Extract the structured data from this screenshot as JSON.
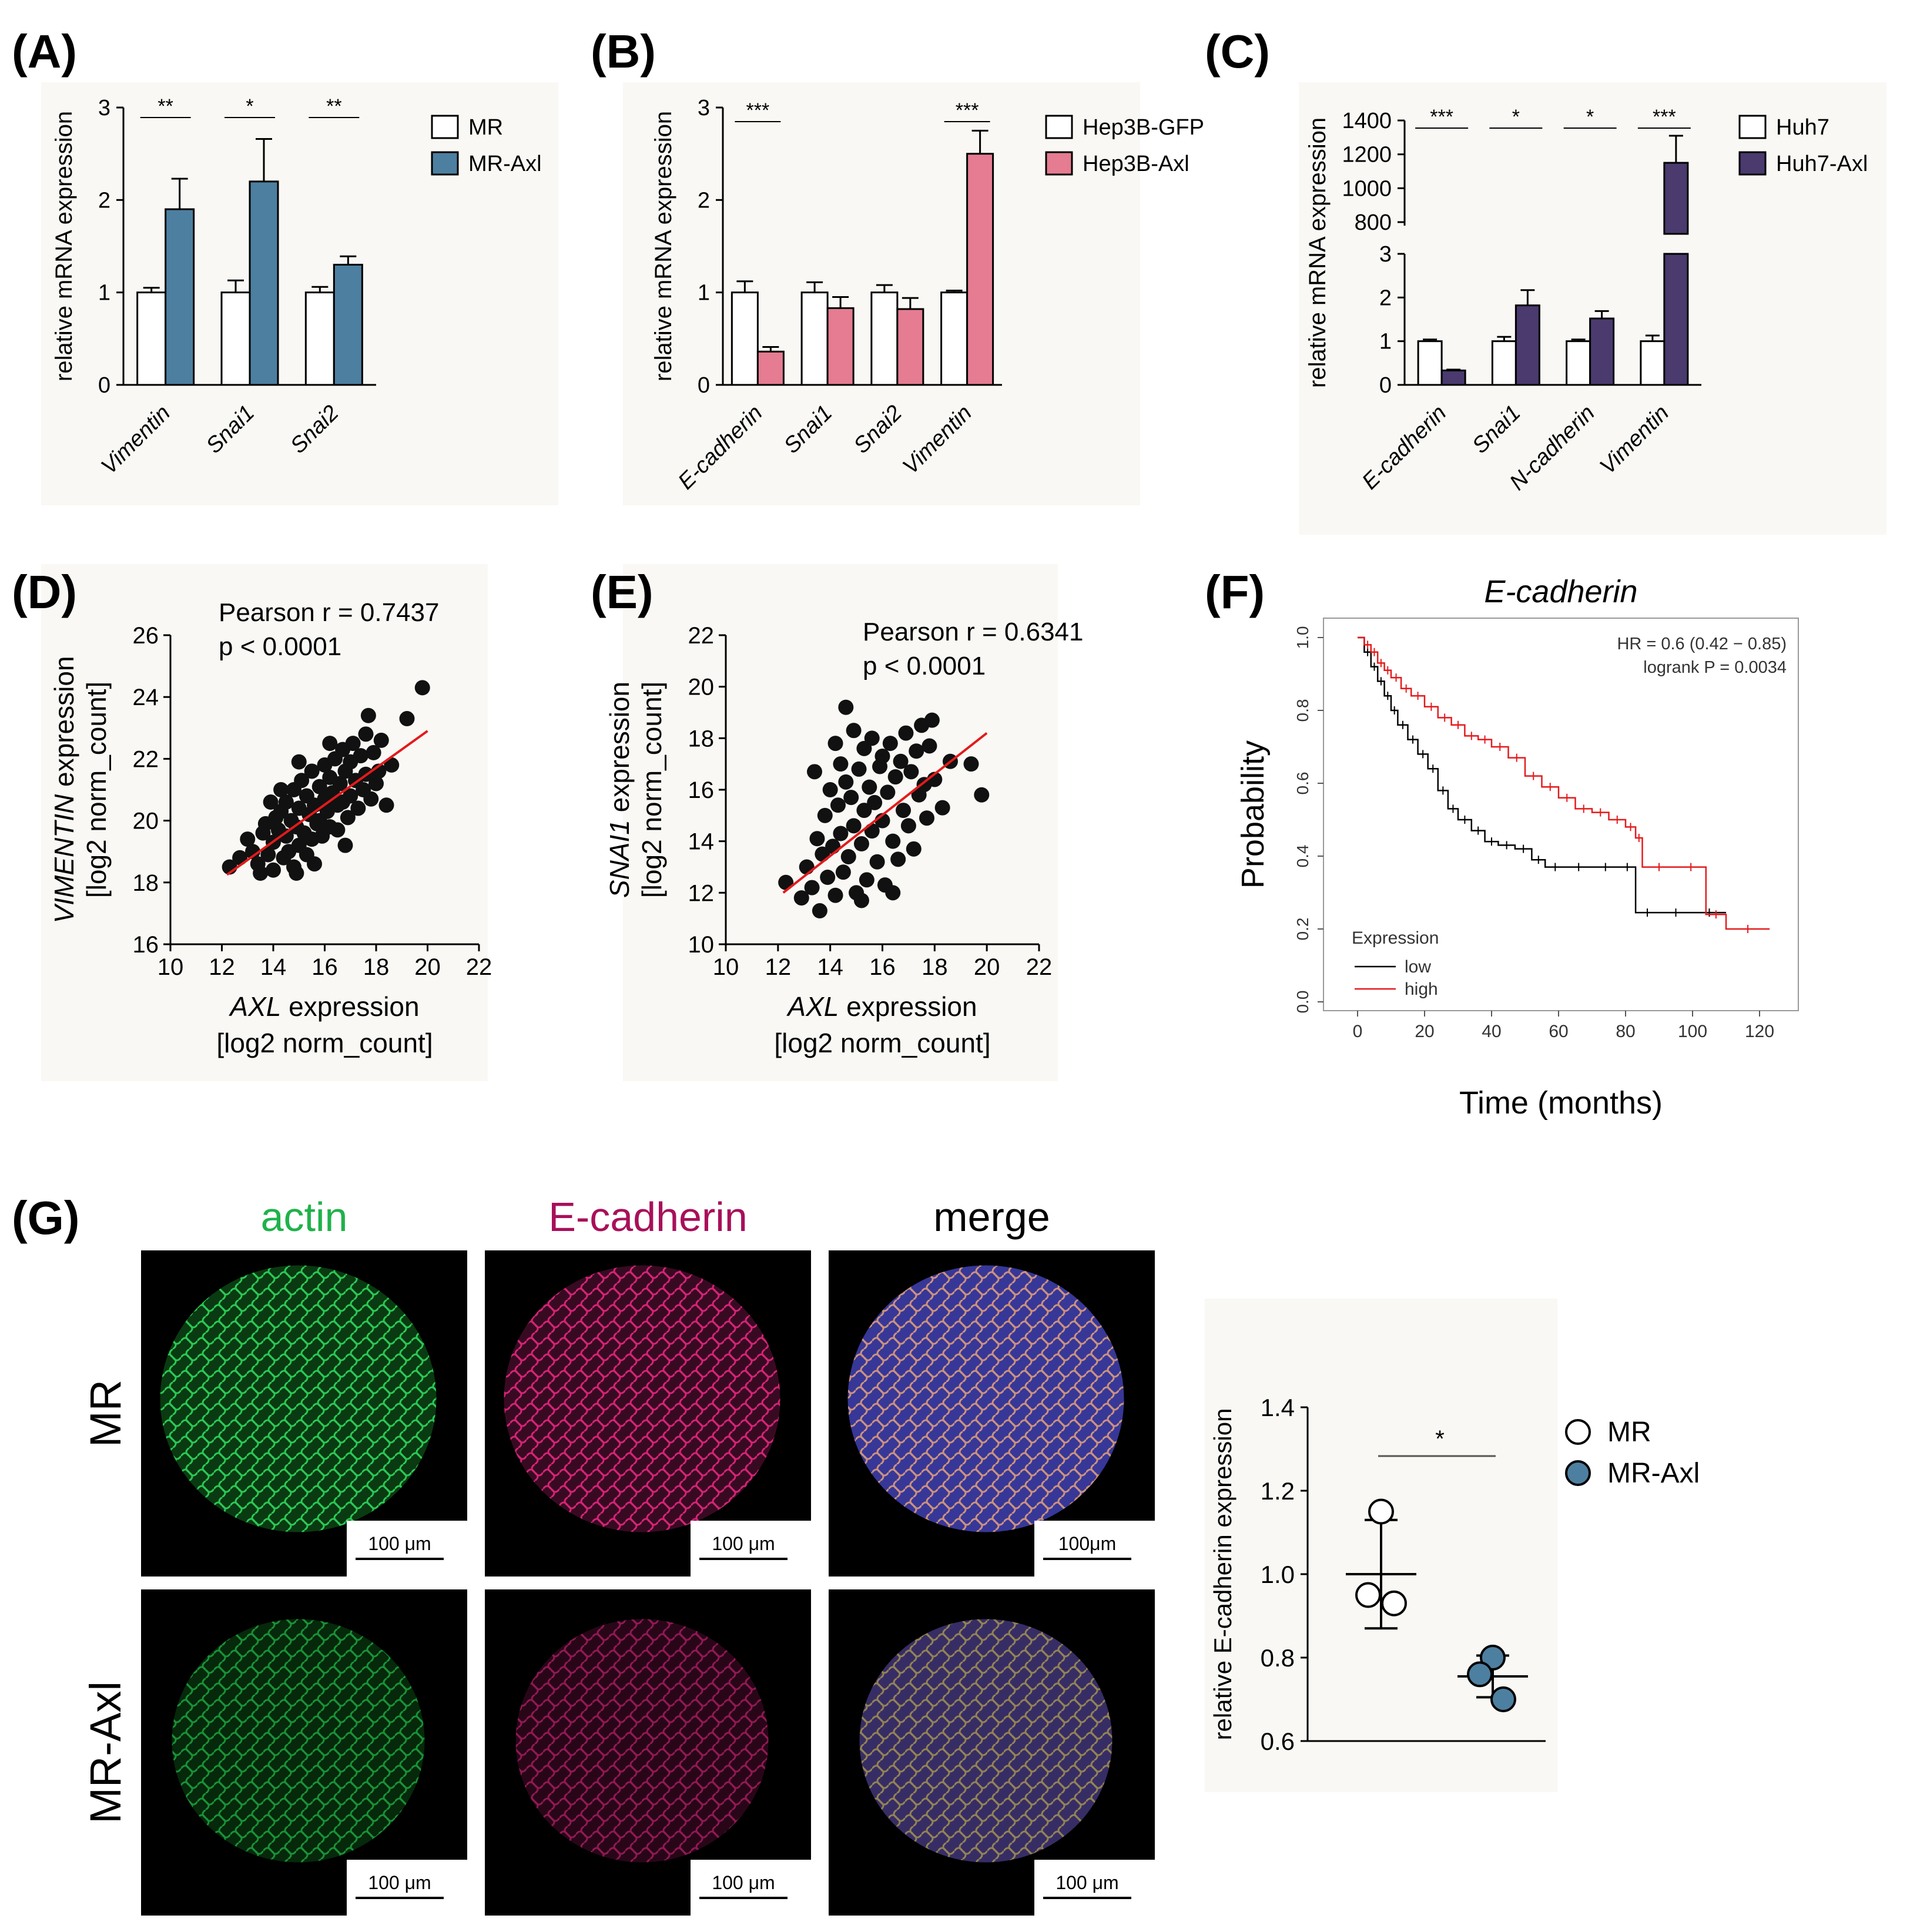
{
  "panels": {
    "A": {
      "letter": "(A)"
    },
    "B": {
      "letter": "(B)"
    },
    "C": {
      "letter": "(C)"
    },
    "D": {
      "letter": "(D)"
    },
    "E": {
      "letter": "(E)"
    },
    "F": {
      "letter": "(F)"
    },
    "G": {
      "letter": "(G)"
    }
  },
  "colors": {
    "mr_axl": "#4d7fa0",
    "hep3b_axl": "#e57c91",
    "huh7_axl": "#4a3a6e",
    "km_low": "#000000",
    "km_high": "#e31a1c",
    "fit_line": "#e31a1c",
    "actin": "#1fb24a",
    "ecad": "#a8105a",
    "merge": "#000000"
  },
  "chart_data": [
    {
      "id": "A",
      "type": "bar",
      "categories": [
        "Vimentin",
        "Snai1",
        "Snai2"
      ],
      "series": [
        {
          "name": "MR",
          "values": [
            1.0,
            1.0,
            1.0
          ],
          "errors": [
            0.05,
            0.13,
            0.06
          ]
        },
        {
          "name": "MR-Axl",
          "values": [
            1.9,
            2.2,
            1.3
          ],
          "errors": [
            0.33,
            0.46,
            0.09
          ]
        }
      ],
      "ylabel": "relative mRNA expression",
      "ylim": [
        0,
        3
      ],
      "yticks": [
        "0",
        "1",
        "2",
        "3"
      ],
      "significance": [
        "**",
        "*",
        "**"
      ]
    },
    {
      "id": "B",
      "type": "bar",
      "categories": [
        "E-cadherin",
        "Snai1",
        "Snai2",
        "Vimentin"
      ],
      "series": [
        {
          "name": "Hep3B-GFP",
          "values": [
            1.0,
            1.0,
            1.0,
            1.0
          ],
          "errors": [
            0.12,
            0.11,
            0.08,
            0.02
          ]
        },
        {
          "name": "Hep3B-Axl",
          "values": [
            0.36,
            0.83,
            0.82,
            2.5
          ],
          "errors": [
            0.05,
            0.12,
            0.12,
            0.25
          ]
        }
      ],
      "ylabel": "relative mRNA expression",
      "ylim": [
        0,
        3
      ],
      "yticks": [
        "0",
        "1",
        "2",
        "3"
      ],
      "significance": [
        "***",
        "",
        "",
        "***"
      ]
    },
    {
      "id": "C",
      "type": "bar",
      "categories": [
        "E-cadherin",
        "Snai1",
        "N-cadherin",
        "Vimentin"
      ],
      "series": [
        {
          "name": "Huh7",
          "values": [
            1.0,
            1.0,
            1.0,
            1.0
          ],
          "errors": [
            0.04,
            0.1,
            0.04,
            0.13
          ]
        },
        {
          "name": "Huh7-Axl",
          "values": [
            0.33,
            1.82,
            1.52,
            1150
          ],
          "errors": [
            0.02,
            0.35,
            0.17,
            160
          ]
        }
      ],
      "ylabel": "relative mRNA expression",
      "ylim": [
        0,
        1400
      ],
      "yticks_lower": [
        "0",
        "1",
        "2",
        "3"
      ],
      "yticks_upper": [
        "800",
        "1000",
        "1200",
        "1400"
      ],
      "significance": [
        "***",
        "*",
        "*",
        "***"
      ]
    },
    {
      "id": "D",
      "type": "scatter",
      "annotation_r": "Pearson r = 0.7437",
      "annotation_p": "p < 0.0001",
      "xlabel_gene": "AXL",
      "xlabel_rest": " expression",
      "xlabel_unit": "[log2 norm_count]",
      "ylabel_gene": "VIMENTIN",
      "ylabel_rest": " expression",
      "ylabel_unit": "[log2 norm_count]",
      "xlim": [
        10,
        22
      ],
      "ylim": [
        16,
        26
      ],
      "xticks": [
        "10",
        "12",
        "14",
        "16",
        "18",
        "20",
        "22"
      ],
      "yticks": [
        "16",
        "18",
        "20",
        "22",
        "24",
        "26"
      ],
      "fit": {
        "x": [
          12.2,
          20
        ],
        "y": [
          18.25,
          22.9
        ]
      },
      "points": [
        [
          12.3,
          18.5
        ],
        [
          12.7,
          18.8
        ],
        [
          13.0,
          19.4
        ],
        [
          13.2,
          19.0
        ],
        [
          13.4,
          18.6
        ],
        [
          13.5,
          18.3
        ],
        [
          13.6,
          19.6
        ],
        [
          13.7,
          19.9
        ],
        [
          13.8,
          18.9
        ],
        [
          14.0,
          18.4
        ],
        [
          14.0,
          19.3
        ],
        [
          14.1,
          20.1
        ],
        [
          14.2,
          19.7
        ],
        [
          14.3,
          20.3
        ],
        [
          14.4,
          18.8
        ],
        [
          14.5,
          19.5
        ],
        [
          14.5,
          20.6
        ],
        [
          14.6,
          19.0
        ],
        [
          14.7,
          20.0
        ],
        [
          14.8,
          18.5
        ],
        [
          14.8,
          21.0
        ],
        [
          14.9,
          19.8
        ],
        [
          15.0,
          20.4
        ],
        [
          15.0,
          19.2
        ],
        [
          15.1,
          21.3
        ],
        [
          15.2,
          19.6
        ],
        [
          15.3,
          20.8
        ],
        [
          15.3,
          18.9
        ],
        [
          15.4,
          20.2
        ],
        [
          15.5,
          21.6
        ],
        [
          15.5,
          19.4
        ],
        [
          15.6,
          20.5
        ],
        [
          15.7,
          19.9
        ],
        [
          15.8,
          21.1
        ],
        [
          15.8,
          20.0
        ],
        [
          15.9,
          19.5
        ],
        [
          16.0,
          20.7
        ],
        [
          16.0,
          21.8
        ],
        [
          16.1,
          20.3
        ],
        [
          16.2,
          19.8
        ],
        [
          16.2,
          21.4
        ],
        [
          16.3,
          20.9
        ],
        [
          16.4,
          22.0
        ],
        [
          16.5,
          20.5
        ],
        [
          16.5,
          19.7
        ],
        [
          16.6,
          21.2
        ],
        [
          16.7,
          22.3
        ],
        [
          16.7,
          20.6
        ],
        [
          16.8,
          21.6
        ],
        [
          16.9,
          20.1
        ],
        [
          17.0,
          21.9
        ],
        [
          17.0,
          20.8
        ],
        [
          17.1,
          22.5
        ],
        [
          17.2,
          21.3
        ],
        [
          17.3,
          20.4
        ],
        [
          17.4,
          22.1
        ],
        [
          17.5,
          21.0
        ],
        [
          17.6,
          22.8
        ],
        [
          17.6,
          21.5
        ],
        [
          17.8,
          20.7
        ],
        [
          17.9,
          22.2
        ],
        [
          18.0,
          21.2
        ],
        [
          18.2,
          22.6
        ],
        [
          18.4,
          20.5
        ],
        [
          18.6,
          21.8
        ],
        [
          19.2,
          23.3
        ],
        [
          19.8,
          24.3
        ],
        [
          16.2,
          22.5
        ],
        [
          15.0,
          21.9
        ],
        [
          14.3,
          21.0
        ],
        [
          13.9,
          20.6
        ],
        [
          17.7,
          23.4
        ],
        [
          18.1,
          21.6
        ],
        [
          16.8,
          19.2
        ],
        [
          15.6,
          18.6
        ],
        [
          14.9,
          18.3
        ]
      ]
    },
    {
      "id": "E",
      "type": "scatter",
      "annotation_r": "Pearson r = 0.6341",
      "annotation_p": "p < 0.0001",
      "xlabel_gene": "AXL",
      "xlabel_rest": " expression",
      "xlabel_unit": "[log2 norm_count]",
      "ylabel_gene": "SNAI1",
      "ylabel_rest": " expression",
      "ylabel_unit": "[log2 norm_count]",
      "xlim": [
        10,
        22
      ],
      "ylim": [
        10,
        22
      ],
      "xticks": [
        "10",
        "12",
        "14",
        "16",
        "18",
        "20",
        "22"
      ],
      "yticks": [
        "10",
        "12",
        "14",
        "16",
        "18",
        "20",
        "22"
      ],
      "fit": {
        "x": [
          12.2,
          20
        ],
        "y": [
          12.0,
          18.2
        ]
      },
      "points": [
        [
          12.3,
          12.4
        ],
        [
          12.9,
          11.8
        ],
        [
          13.1,
          13.0
        ],
        [
          13.3,
          12.2
        ],
        [
          13.5,
          14.1
        ],
        [
          13.6,
          11.3
        ],
        [
          13.7,
          13.5
        ],
        [
          13.8,
          15.0
        ],
        [
          13.9,
          12.6
        ],
        [
          14.0,
          16.0
        ],
        [
          14.1,
          13.8
        ],
        [
          14.2,
          11.9
        ],
        [
          14.3,
          15.4
        ],
        [
          14.4,
          14.3
        ],
        [
          14.4,
          17.0
        ],
        [
          14.5,
          12.8
        ],
        [
          14.6,
          16.3
        ],
        [
          14.6,
          19.2
        ],
        [
          14.7,
          13.4
        ],
        [
          14.8,
          15.7
        ],
        [
          14.9,
          18.3
        ],
        [
          14.9,
          14.6
        ],
        [
          15.0,
          12.0
        ],
        [
          15.1,
          16.8
        ],
        [
          15.2,
          13.9
        ],
        [
          15.3,
          15.2
        ],
        [
          15.3,
          17.6
        ],
        [
          15.4,
          12.5
        ],
        [
          15.5,
          16.1
        ],
        [
          15.6,
          14.4
        ],
        [
          15.6,
          18.0
        ],
        [
          15.7,
          15.5
        ],
        [
          15.8,
          13.2
        ],
        [
          15.9,
          16.9
        ],
        [
          16.0,
          14.8
        ],
        [
          16.0,
          17.3
        ],
        [
          16.1,
          12.3
        ],
        [
          16.2,
          15.9
        ],
        [
          16.3,
          17.8
        ],
        [
          16.4,
          14.0
        ],
        [
          16.5,
          16.5
        ],
        [
          16.6,
          13.3
        ],
        [
          16.7,
          17.1
        ],
        [
          16.8,
          15.2
        ],
        [
          16.9,
          18.2
        ],
        [
          17.0,
          14.6
        ],
        [
          17.1,
          16.7
        ],
        [
          17.2,
          13.7
        ],
        [
          17.3,
          17.5
        ],
        [
          17.4,
          15.8
        ],
        [
          17.5,
          18.5
        ],
        [
          17.6,
          16.2
        ],
        [
          17.7,
          14.9
        ],
        [
          17.8,
          17.7
        ],
        [
          18.0,
          16.4
        ],
        [
          18.3,
          15.3
        ],
        [
          18.6,
          17.1
        ],
        [
          19.4,
          17.0
        ],
        [
          19.8,
          15.8
        ],
        [
          17.9,
          18.7
        ],
        [
          15.2,
          11.7
        ],
        [
          16.4,
          12.0
        ],
        [
          14.2,
          17.8
        ],
        [
          13.4,
          16.7
        ]
      ]
    },
    {
      "id": "F",
      "type": "line",
      "title": "E-cadherin",
      "hr_text": "HR = 0.6 (0.42 − 0.85)",
      "logrank_text": "logrank P = 0.0034",
      "xlabel": "Time (months)",
      "ylabel": "Probability",
      "xlim": [
        0,
        120
      ],
      "ylim": [
        0,
        1
      ],
      "xticks": [
        "0",
        "20",
        "40",
        "60",
        "80",
        "100",
        "120"
      ],
      "yticks": [
        "0.0",
        "0.2",
        "0.4",
        "0.6",
        "0.8",
        "1.0"
      ],
      "legend_title": "Expression",
      "series": [
        {
          "name": "low",
          "x": [
            0,
            2,
            4,
            6,
            8,
            10,
            12,
            15,
            18,
            21,
            24,
            27,
            30,
            34,
            38,
            42,
            47,
            52,
            56,
            62,
            70,
            78,
            83,
            90,
            100,
            110
          ],
          "y": [
            1.0,
            0.96,
            0.92,
            0.88,
            0.84,
            0.8,
            0.76,
            0.72,
            0.68,
            0.64,
            0.58,
            0.53,
            0.5,
            0.47,
            0.44,
            0.43,
            0.42,
            0.39,
            0.37,
            0.37,
            0.37,
            0.37,
            0.245,
            0.245,
            0.245,
            0.245
          ]
        },
        {
          "name": "high",
          "x": [
            0,
            2,
            4,
            6,
            8,
            10,
            13,
            16,
            20,
            24,
            28,
            32,
            36,
            40,
            45,
            50,
            55,
            60,
            65,
            70,
            75,
            80,
            83,
            85,
            95,
            104,
            110,
            123
          ],
          "y": [
            1.0,
            0.98,
            0.96,
            0.93,
            0.91,
            0.89,
            0.86,
            0.84,
            0.81,
            0.78,
            0.76,
            0.73,
            0.72,
            0.7,
            0.67,
            0.62,
            0.59,
            0.56,
            0.53,
            0.52,
            0.5,
            0.48,
            0.45,
            0.37,
            0.37,
            0.24,
            0.2,
            0.2
          ]
        }
      ]
    },
    {
      "id": "G",
      "type": "scatter",
      "ylabel": "relative E-cadherin expression",
      "ylim": [
        0.6,
        1.4
      ],
      "yticks": [
        "0.6",
        "0.8",
        "1.0",
        "1.2",
        "1.4"
      ],
      "significance": "*",
      "series": [
        {
          "name": "MR",
          "values": [
            1.15,
            0.95,
            0.93
          ],
          "mean": 1.0,
          "sd_low": 0.87,
          "sd_high": 1.13
        },
        {
          "name": "MR-Axl",
          "values": [
            0.8,
            0.76,
            0.7
          ],
          "mean": 0.755,
          "sd_low": 0.705,
          "sd_high": 0.805
        }
      ]
    }
  ],
  "micrographs": {
    "col_labels": [
      "actin",
      "E-cadherin",
      "merge"
    ],
    "row_labels": [
      "MR",
      "MR-Axl"
    ],
    "scale_bars": [
      [
        "100 μm",
        "100 μm",
        "100μm"
      ],
      [
        "100 μm",
        "100 μm",
        "100 μm"
      ]
    ]
  }
}
